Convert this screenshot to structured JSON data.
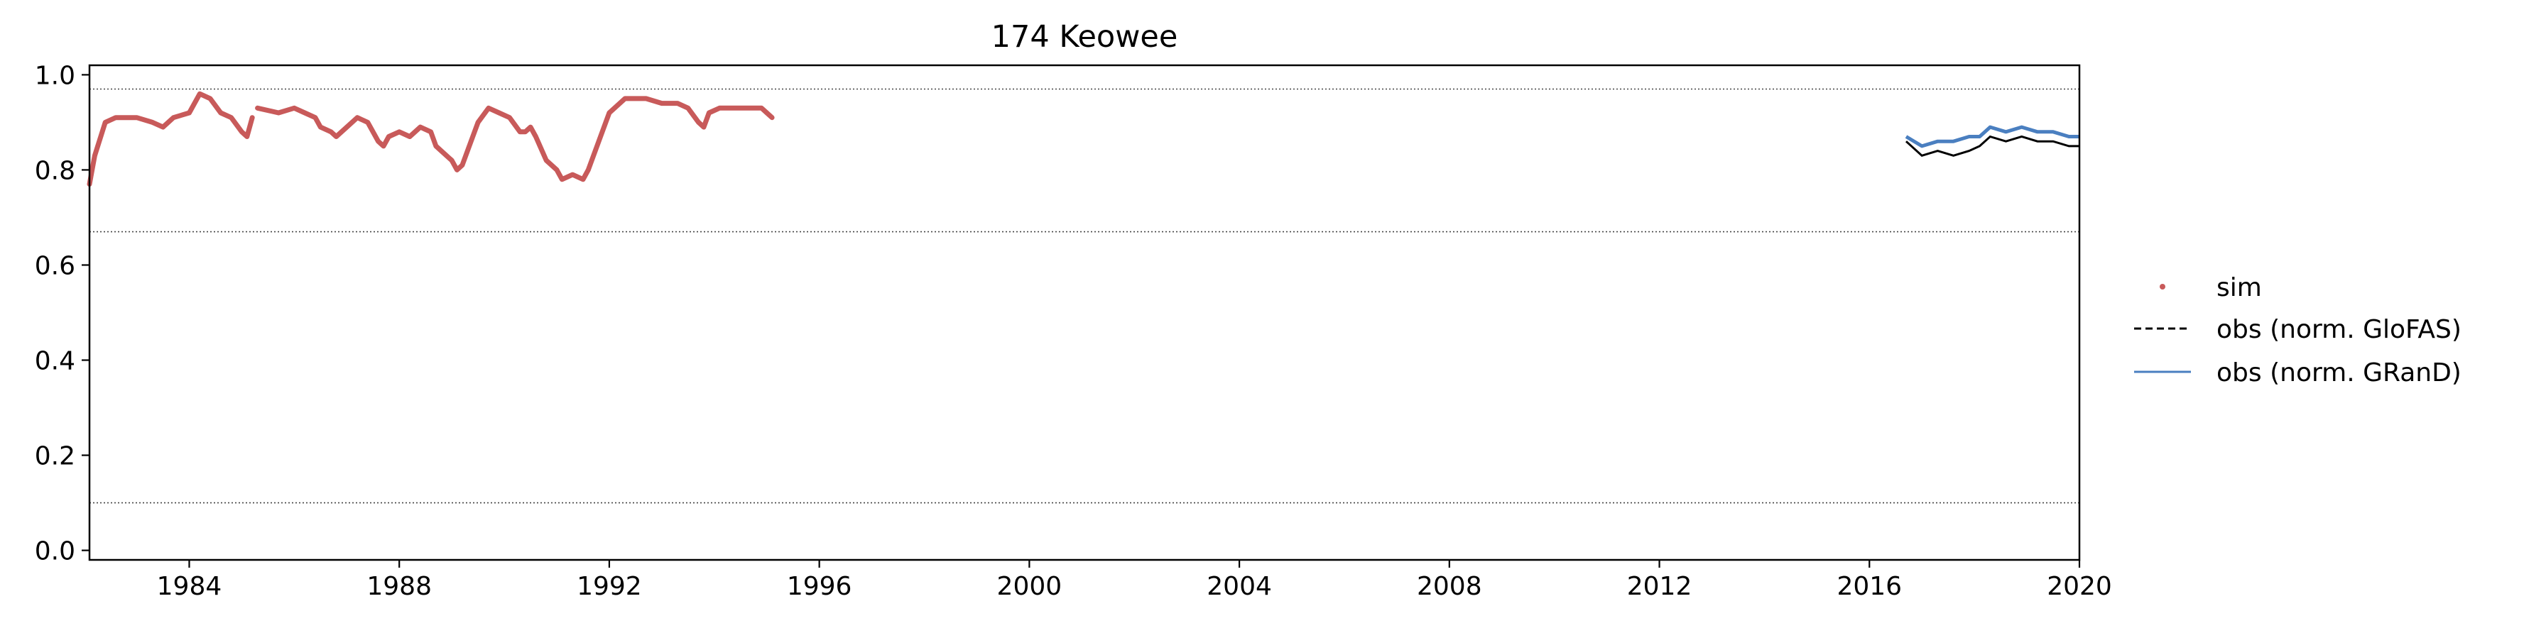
{
  "chart_data": {
    "type": "line",
    "title": "174  Keowee",
    "xlabel": "",
    "ylabel": "",
    "xlim": [
      1982.1,
      2020.0
    ],
    "ylim": [
      -0.02,
      1.02
    ],
    "xticks": [
      1984,
      1988,
      1992,
      1996,
      2000,
      2004,
      2008,
      2012,
      2016,
      2020
    ],
    "yticks": [
      0.0,
      0.2,
      0.4,
      0.6,
      0.8,
      1.0
    ],
    "xtick_labels": [
      "1984",
      "1988",
      "1992",
      "1996",
      "2000",
      "2004",
      "2008",
      "2012",
      "2016",
      "2020"
    ],
    "ytick_labels": [
      "0.0",
      "0.2",
      "0.4",
      "0.6",
      "0.8",
      "1.0"
    ],
    "hlines": [
      0.97,
      0.67,
      0.1
    ],
    "grid": false,
    "legend_position": "right",
    "series": [
      {
        "name": "sim",
        "kind": "points",
        "color": "#c85a5a",
        "segments": [
          [
            [
              1982.1,
              0.77
            ],
            [
              1982.2,
              0.83
            ],
            [
              1982.4,
              0.9
            ],
            [
              1982.6,
              0.91
            ],
            [
              1983.0,
              0.91
            ],
            [
              1983.3,
              0.9
            ],
            [
              1983.5,
              0.89
            ],
            [
              1983.7,
              0.91
            ],
            [
              1984.0,
              0.92
            ],
            [
              1984.2,
              0.96
            ],
            [
              1984.4,
              0.95
            ],
            [
              1984.6,
              0.92
            ],
            [
              1984.8,
              0.91
            ],
            [
              1985.0,
              0.88
            ],
            [
              1985.1,
              0.87
            ],
            [
              1985.2,
              0.91
            ]
          ],
          [
            [
              1985.3,
              0.93
            ],
            [
              1985.7,
              0.92
            ],
            [
              1986.0,
              0.93
            ],
            [
              1986.2,
              0.92
            ],
            [
              1986.4,
              0.91
            ],
            [
              1986.5,
              0.89
            ],
            [
              1986.7,
              0.88
            ],
            [
              1986.8,
              0.87
            ],
            [
              1987.0,
              0.89
            ],
            [
              1987.2,
              0.91
            ],
            [
              1987.4,
              0.9
            ],
            [
              1987.5,
              0.88
            ],
            [
              1987.6,
              0.86
            ],
            [
              1987.7,
              0.85
            ],
            [
              1987.8,
              0.87
            ],
            [
              1988.0,
              0.88
            ],
            [
              1988.2,
              0.87
            ],
            [
              1988.4,
              0.89
            ],
            [
              1988.6,
              0.88
            ],
            [
              1988.7,
              0.85
            ],
            [
              1988.8,
              0.84
            ],
            [
              1989.0,
              0.82
            ],
            [
              1989.1,
              0.8
            ],
            [
              1989.2,
              0.81
            ],
            [
              1989.3,
              0.84
            ],
            [
              1989.5,
              0.9
            ],
            [
              1989.7,
              0.93
            ],
            [
              1989.9,
              0.92
            ],
            [
              1990.1,
              0.91
            ],
            [
              1990.3,
              0.88
            ],
            [
              1990.4,
              0.88
            ],
            [
              1990.5,
              0.89
            ],
            [
              1990.6,
              0.87
            ],
            [
              1990.8,
              0.82
            ],
            [
              1991.0,
              0.8
            ],
            [
              1991.1,
              0.78
            ],
            [
              1991.3,
              0.79
            ],
            [
              1991.5,
              0.78
            ],
            [
              1991.6,
              0.8
            ],
            [
              1991.8,
              0.86
            ],
            [
              1992.0,
              0.92
            ],
            [
              1992.3,
              0.95
            ],
            [
              1992.7,
              0.95
            ],
            [
              1993.0,
              0.94
            ],
            [
              1993.3,
              0.94
            ],
            [
              1993.5,
              0.93
            ],
            [
              1993.7,
              0.9
            ],
            [
              1993.8,
              0.89
            ],
            [
              1993.9,
              0.92
            ],
            [
              1994.1,
              0.93
            ],
            [
              1994.3,
              0.93
            ],
            [
              1994.6,
              0.93
            ],
            [
              1994.9,
              0.93
            ],
            [
              1995.0,
              0.92
            ],
            [
              1995.1,
              0.91
            ]
          ]
        ]
      },
      {
        "name": "obs (norm. GloFAS)",
        "kind": "dashed",
        "color": "#000000",
        "points": [
          [
            2016.7,
            0.86
          ],
          [
            2017.0,
            0.83
          ],
          [
            2017.3,
            0.84
          ],
          [
            2017.6,
            0.83
          ],
          [
            2017.9,
            0.84
          ],
          [
            2018.1,
            0.85
          ],
          [
            2018.3,
            0.87
          ],
          [
            2018.6,
            0.86
          ],
          [
            2018.9,
            0.87
          ],
          [
            2019.2,
            0.86
          ],
          [
            2019.5,
            0.86
          ],
          [
            2019.8,
            0.85
          ],
          [
            2020.0,
            0.85
          ]
        ]
      },
      {
        "name": "obs (norm. GRanD)",
        "kind": "line",
        "color": "#4a7fc0",
        "points": [
          [
            2016.7,
            0.87
          ],
          [
            2017.0,
            0.85
          ],
          [
            2017.3,
            0.86
          ],
          [
            2017.6,
            0.86
          ],
          [
            2017.9,
            0.87
          ],
          [
            2018.1,
            0.87
          ],
          [
            2018.3,
            0.89
          ],
          [
            2018.6,
            0.88
          ],
          [
            2018.9,
            0.89
          ],
          [
            2019.2,
            0.88
          ],
          [
            2019.5,
            0.88
          ],
          [
            2019.8,
            0.87
          ],
          [
            2020.0,
            0.87
          ]
        ]
      }
    ]
  }
}
